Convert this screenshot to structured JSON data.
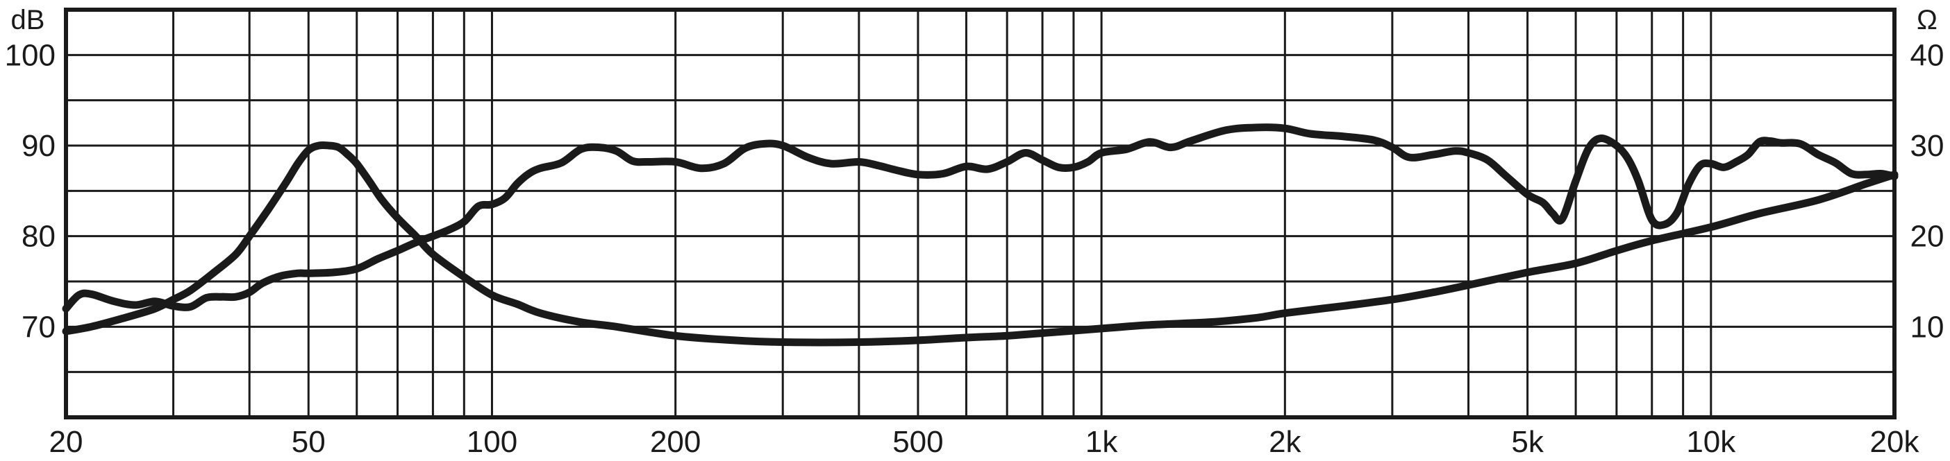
{
  "chart_data": {
    "type": "line",
    "title": "",
    "xlabel": "",
    "x_scale": "log",
    "xlim": [
      20,
      20000
    ],
    "x_ticks": [
      20,
      50,
      100,
      200,
      500,
      1000,
      2000,
      5000,
      10000,
      20000
    ],
    "x_tick_labels": [
      "20",
      "50",
      "100",
      "200",
      "500",
      "1k",
      "2k",
      "5k",
      "10k",
      "20k"
    ],
    "y_left": {
      "unit": "dB",
      "ylim": [
        60,
        105
      ],
      "ticks": [
        70,
        80,
        90,
        100
      ],
      "tick_labels": [
        "70",
        "80",
        "90",
        "100"
      ]
    },
    "y_right": {
      "unit": "Ω",
      "ylim": [
        0,
        45
      ],
      "ticks": [
        10,
        20,
        30,
        40
      ],
      "tick_labels": [
        "10",
        "20",
        "30",
        "40"
      ]
    },
    "grid": true,
    "series": [
      {
        "axis": "left",
        "color": "#1a1a1a",
        "points": [
          [
            20,
            72
          ],
          [
            21,
            73.5
          ],
          [
            22,
            73.6
          ],
          [
            24,
            72.8
          ],
          [
            26,
            72.4
          ],
          [
            28,
            72.8
          ],
          [
            30,
            72.3
          ],
          [
            32,
            72.2
          ],
          [
            34,
            73.2
          ],
          [
            36,
            73.3
          ],
          [
            38,
            73.3
          ],
          [
            40,
            73.8
          ],
          [
            42,
            74.8
          ],
          [
            45,
            75.6
          ],
          [
            48,
            75.9
          ],
          [
            50,
            75.9
          ],
          [
            55,
            76.0
          ],
          [
            60,
            76.4
          ],
          [
            65,
            77.5
          ],
          [
            70,
            78.4
          ],
          [
            75,
            79.3
          ],
          [
            80,
            80.0
          ],
          [
            85,
            80.7
          ],
          [
            90,
            81.6
          ],
          [
            95,
            83.3
          ],
          [
            100,
            83.5
          ],
          [
            105,
            84.2
          ],
          [
            110,
            85.8
          ],
          [
            115,
            86.9
          ],
          [
            120,
            87.5
          ],
          [
            130,
            88.1
          ],
          [
            140,
            89.6
          ],
          [
            150,
            89.8
          ],
          [
            160,
            89.4
          ],
          [
            170,
            88.3
          ],
          [
            180,
            88.2
          ],
          [
            200,
            88.2
          ],
          [
            220,
            87.5
          ],
          [
            240,
            88.0
          ],
          [
            260,
            89.7
          ],
          [
            280,
            90.2
          ],
          [
            300,
            90.0
          ],
          [
            330,
            88.7
          ],
          [
            360,
            88.0
          ],
          [
            400,
            88.2
          ],
          [
            430,
            87.8
          ],
          [
            460,
            87.3
          ],
          [
            500,
            86.8
          ],
          [
            550,
            86.9
          ],
          [
            600,
            87.7
          ],
          [
            650,
            87.4
          ],
          [
            700,
            88.2
          ],
          [
            750,
            89.2
          ],
          [
            800,
            88.4
          ],
          [
            850,
            87.6
          ],
          [
            900,
            87.6
          ],
          [
            950,
            88.2
          ],
          [
            1000,
            89.2
          ],
          [
            1100,
            89.6
          ],
          [
            1200,
            90.4
          ],
          [
            1300,
            89.8
          ],
          [
            1400,
            90.5
          ],
          [
            1600,
            91.7
          ],
          [
            1800,
            92.0
          ],
          [
            2000,
            91.9
          ],
          [
            2200,
            91.3
          ],
          [
            2500,
            91.0
          ],
          [
            2800,
            90.6
          ],
          [
            3000,
            89.8
          ],
          [
            3200,
            88.7
          ],
          [
            3500,
            89.0
          ],
          [
            3800,
            89.4
          ],
          [
            4000,
            89.2
          ],
          [
            4300,
            88.4
          ],
          [
            4600,
            86.7
          ],
          [
            5000,
            84.6
          ],
          [
            5300,
            83.7
          ],
          [
            5500,
            82.5
          ],
          [
            5700,
            81.9
          ],
          [
            6000,
            86.1
          ],
          [
            6300,
            89.7
          ],
          [
            6600,
            90.8
          ],
          [
            7000,
            90.0
          ],
          [
            7300,
            88.6
          ],
          [
            7600,
            86.1
          ],
          [
            8000,
            81.8
          ],
          [
            8400,
            81.3
          ],
          [
            8800,
            82.6
          ],
          [
            9200,
            85.8
          ],
          [
            9600,
            87.8
          ],
          [
            10000,
            88.0
          ],
          [
            10500,
            87.6
          ],
          [
            11000,
            88.2
          ],
          [
            11500,
            89.0
          ],
          [
            12000,
            90.4
          ],
          [
            12500,
            90.5
          ],
          [
            13000,
            90.3
          ],
          [
            14000,
            90.2
          ],
          [
            15000,
            89.0
          ],
          [
            16000,
            88.1
          ],
          [
            17000,
            86.9
          ],
          [
            18000,
            86.8
          ],
          [
            19000,
            86.9
          ],
          [
            20000,
            86.6
          ]
        ]
      },
      {
        "axis": "right",
        "color": "#1a1a1a",
        "points": [
          [
            20,
            9.5
          ],
          [
            22,
            10
          ],
          [
            25,
            11
          ],
          [
            28,
            12
          ],
          [
            30,
            13
          ],
          [
            32,
            14
          ],
          [
            35,
            16
          ],
          [
            38,
            18
          ],
          [
            40,
            20
          ],
          [
            43,
            23
          ],
          [
            46,
            26
          ],
          [
            48,
            28
          ],
          [
            50,
            29.5
          ],
          [
            52,
            30
          ],
          [
            54,
            30
          ],
          [
            56,
            29.8
          ],
          [
            58,
            29
          ],
          [
            60,
            28
          ],
          [
            63,
            26
          ],
          [
            66,
            24
          ],
          [
            70,
            22
          ],
          [
            75,
            20
          ],
          [
            80,
            18
          ],
          [
            90,
            15.5
          ],
          [
            100,
            13.5
          ],
          [
            110,
            12.5
          ],
          [
            120,
            11.5
          ],
          [
            140,
            10.5
          ],
          [
            160,
            10
          ],
          [
            200,
            9
          ],
          [
            250,
            8.5
          ],
          [
            300,
            8.3
          ],
          [
            400,
            8.3
          ],
          [
            500,
            8.5
          ],
          [
            600,
            8.8
          ],
          [
            700,
            9
          ],
          [
            800,
            9.3
          ],
          [
            1000,
            9.8
          ],
          [
            1200,
            10.2
          ],
          [
            1500,
            10.5
          ],
          [
            1800,
            11
          ],
          [
            2000,
            11.5
          ],
          [
            2500,
            12.3
          ],
          [
            3000,
            13
          ],
          [
            3500,
            13.8
          ],
          [
            4000,
            14.6
          ],
          [
            5000,
            16
          ],
          [
            6000,
            17
          ],
          [
            7000,
            18.4
          ],
          [
            8000,
            19.5
          ],
          [
            10000,
            21
          ],
          [
            12000,
            22.5
          ],
          [
            15000,
            24
          ],
          [
            18000,
            25.8
          ],
          [
            20000,
            26.8
          ]
        ]
      }
    ]
  }
}
